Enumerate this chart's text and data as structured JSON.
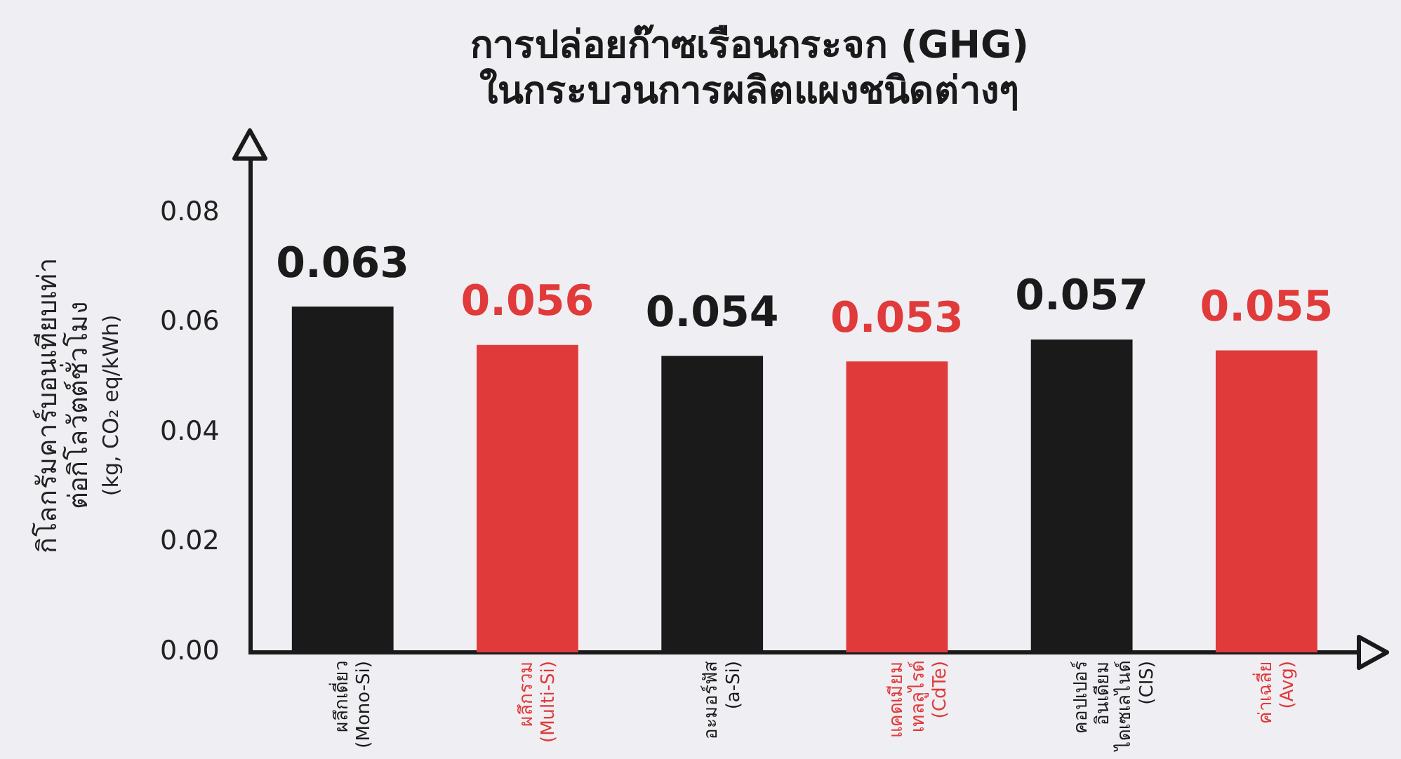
{
  "chart_data": {
    "type": "bar",
    "title": [
      "การปล่อยก๊าซเรือนกระจก (GHG)",
      "ในกระบวนการผลิตแผงชนิดต่างๆ"
    ],
    "ylabel": "กิโลกรัมคาร์บอนเทียบเท่า\nต่อกิโลวัตต์ชั่วโมง\n(kg, CO₂ eq/kWh)",
    "categories": [
      "ผลึกเดี่ยว\n(Mono-Si)",
      "ผลึกรวม\n(Multi-Si)",
      "อะมอร์ฟัส\n(a-Si)",
      "แคดเมียม\nเทลลูไรด์\n(CdTe)",
      "คอปเปอร์\nอินเดียม\nไดเซเลไนด์\n(CIS)",
      "ค่าเฉลี่ย\n(Avg)"
    ],
    "values": [
      0.063,
      0.056,
      0.054,
      0.053,
      0.057,
      0.055
    ],
    "colors": [
      "#1a1a1a",
      "#e03a3a",
      "#1a1a1a",
      "#e03a3a",
      "#1a1a1a",
      "#e03a3a"
    ],
    "ylim": [
      0,
      0.09
    ],
    "yticks": [
      {
        "value": 0,
        "label": "0.00"
      },
      0.02,
      0.04,
      0.06,
      0.08
    ],
    "grid": false,
    "legend": false,
    "data_labels": true
  }
}
